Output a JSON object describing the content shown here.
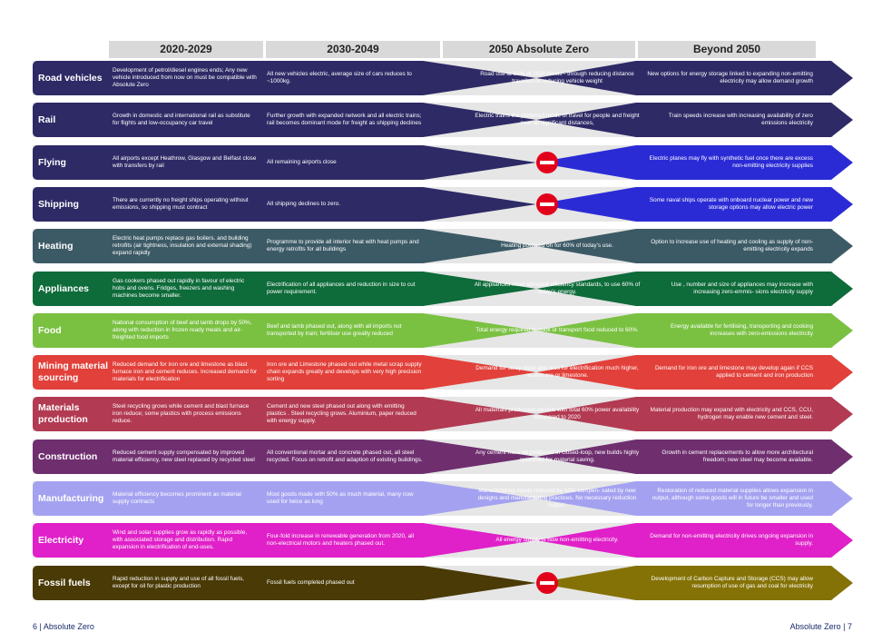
{
  "headers": [
    "2020-2029",
    "2030-2049",
    "2050 Absolute Zero",
    "Beyond 2050"
  ],
  "rows": [
    {
      "label": "Road vehicles",
      "color": "#2e2a66",
      "c1": "Development of petrol/diesel engines ends; Any new vehicle introduced from now on must be compatible with Absolute Zero",
      "c2": "All new vehicles electric, average size of cars reduces to ~1000kg.",
      "c3": "Road use at 60% of 2020 levels - through reducing distance travelled or reducing vehicle weight",
      "c4": "New options for energy storage linked to expanding non-emitting electricity may allow demand growth"
    },
    {
      "label": "Rail",
      "color": "#2e2a66",
      "c1": "Growth in domestic and international rail as substitute for flights and low-occupancy car travel",
      "c2": "Further growth with expanded network and all electric trains; rail becomes dominant mode for freight as shipping declines",
      "c3": "Electric trains the preferred mode of travel for people and freight over all significant distances,",
      "c4": "Train speeds increase with increasing availability of zero emissions electricity"
    },
    {
      "label": "Flying",
      "color": "#2e2a66",
      "c4color": "#2b2bd6",
      "c1": "All airports except Heathrow, Glasgow and Belfast close with transfers by rail",
      "c2": "All remaining airports close",
      "c3": "",
      "c4": "Electric planes may fly with synthetic fuel once there are excess non-emitting electricity supplies"
    },
    {
      "label": "Shipping",
      "color": "#2e2a66",
      "c4color": "#2b2bd6",
      "c1": "There are currently no freight ships operating without emissions, so shipping must contract",
      "c2": "All shipping declines to zero.",
      "c3": "",
      "c4": "Some naval ships operate with onboard nuclear power and new storage options may allow electric power"
    },
    {
      "label": "Heating",
      "color": "#3c5a66",
      "c1": "Electric heat pumps replace gas boilers. and building retrofits (air tightness, insulation and external shading) expand rapidly",
      "c2": "Programme to provide all interior heat with heat pumps and energy retrofits for all buildings",
      "c3": "Heating powered on for 60% of today's use.",
      "c4": "Option to increase use of heating and cooling as supply of non-emitting electricity expands"
    },
    {
      "label": "Appliances",
      "color": "#0e6b3a",
      "c1": "Gas cookers phased out rapidly in favour of electric hobs and ovens. Fridges, freezers and washing machines become smaller.",
      "c2": "Electrification of all appliances and reduction in size to cut power requirement.",
      "c3": "All appliances meet stringent efficiency standards, to use 60% of today's energy.",
      "c4": "Use , number and size of appliances may increase with increasing zero-emmis- sions electricity supply"
    },
    {
      "label": "Food",
      "color": "#7ac142",
      "c1": "National consumption of beef and lamb drops by 50%, along with reduction in frozen ready meals and air-freighted food imports",
      "c2": "Beef and lamb phased out, along with all imports not transported by train; fertiliser use greatly reduced",
      "c3": "Total energy required to cook or transport food reduced to 60%.",
      "c4": "Energy available for fertilising, transporting and cooking increases with zero-emissions electricity"
    },
    {
      "label": "Mining material sourcing",
      "color": "#e2403a",
      "c1": "Reduced demand for iron ore and limestone as blast furnace iron and cement reduces. Increased demand for materials for electrification",
      "c2": "Iron ore and Limestone phased out while metal scrap supply chain expands greatly and develops with very high precision sorting",
      "c3": "Demand for scrap steel and ores for electrification much higher, no iron ore or limestone.",
      "c4": "Demand for iron ore and limestone may develop again if CCS applied to cement and iron production"
    },
    {
      "label": "Materials production",
      "color": "#b23a52",
      "c1": "Steel recycling grows while cement and blast furnace iron reduce; some plastics with process emissions reduce.",
      "c2": "Cement and new steel phased out along with emitting plastics . Steel recycling grows. Aluminium, paper reduced with energy supply.",
      "c3": "All materials production electric with total 60% power availability compared to 2020",
      "c4": "Material production may expand with electricity and CCS, CCU, hydrogen may enable new cement and steel."
    },
    {
      "label": "Construction",
      "color": "#6f2f6f",
      "c1": "Reduced cement supply compensated by improved material efficiency, new steel replaced by recycled steel",
      "c2": "All conventional mortar and concrete phased out, all steel recycled. Focus on retrofit and adaption of existing buildings.",
      "c3": "Any cement must be produced in closed-loop, new builds highly optimised for material saving.",
      "c4": "Growth in cement replacements to allow more architectural freedom; new steel may become available."
    },
    {
      "label": "Manufacturing",
      "color": "#a4a2f0",
      "c1": "Material efficiency becomes prominent as material supply contracts",
      "c2": "Most goods made with 50% as much material, many now used for twice as long",
      "c3": "Manufacturing inputs reduced by 50% compen- sated by new designs and manufacturing practices. No necessary reduction output.",
      "c4": "Restoration of reduced material supplies allows expansion in output, although some goods will in future be smaller and used for longer than previously."
    },
    {
      "label": "Electricity",
      "color": "#e020c8",
      "c1": "Wind and solar supplies grow as rapidly as possible, with associated storage and distribution. Rapid expansion in electrification of end-uses.",
      "c2": "Four-fold increase in renewable generation from 2020, all non-electrical motors and heaters phased out.",
      "c3": "All energy supply is now non-emitting electricity.",
      "c4": "Demand for non-emitting electricity drives ongoing expansion in supply."
    },
    {
      "label": "Fossil fuels",
      "color": "#4a3a06",
      "c4color": "#857206",
      "c1": "Rapid reduction in supply and use of all fossil fuels, except for oil for plastic production",
      "c2": "Fossil fuels completed phased out",
      "c3": "",
      "c4": "Development of Carbon Capture and Storage (CCS) may allow resumption of use of gas and coal for electricity"
    }
  ],
  "footer": {
    "left": "6 | Absolute Zero",
    "right": "Absolute Zero | 7"
  }
}
